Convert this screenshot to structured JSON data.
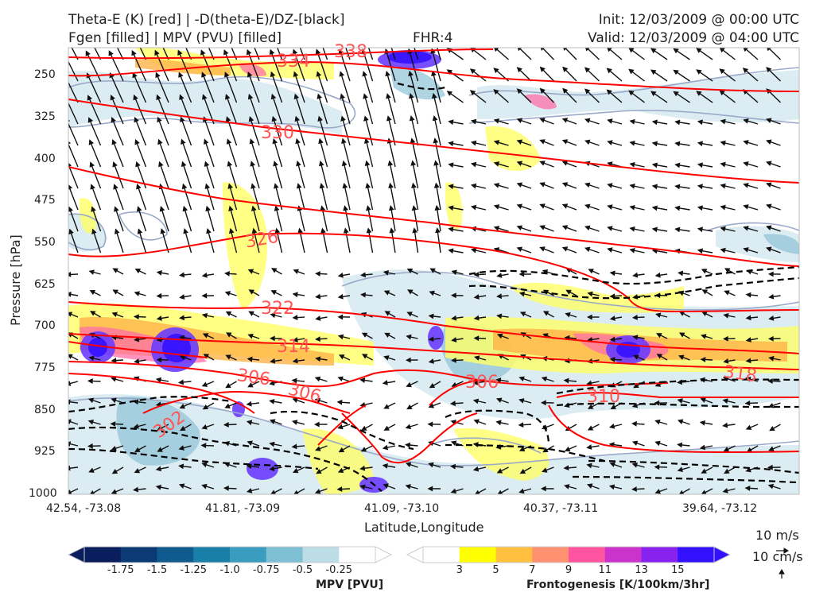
{
  "header": {
    "title_line1": "Theta-E (K) [red] | -D(theta-E)/DZ-[black]",
    "title_line2": "Fgen [filled] | MPV (PVU) [filled]",
    "fhr": "FHR:4",
    "init": "Init: 12/03/2009 @ 00:00 UTC",
    "valid": "Valid: 12/03/2009 @ 04:00 UTC"
  },
  "chart_data": {
    "type": "cross-section contour",
    "xlabel": "Latitude,Longitude",
    "ylabel": "Pressure [hPa]",
    "x_ticks": [
      "42.54, -73.08",
      "41.81, -73.09",
      "41.09, -73.10",
      "40.37, -73.11",
      "39.64, -73.12"
    ],
    "y_ticks": [
      250,
      325,
      400,
      475,
      550,
      625,
      700,
      775,
      850,
      925,
      1000
    ],
    "ylim": [
      1000,
      200
    ],
    "theta_e_labels": [
      "338",
      "334",
      "330",
      "326",
      "322",
      "314",
      "306",
      "306",
      "302",
      "306",
      "310",
      "318"
    ],
    "colors": {
      "theta_e": "#ff0000",
      "mpv_contour": "#9aa9c9",
      "arrows": "#111111"
    }
  },
  "colorbars": {
    "mpv": {
      "title": "MPV [PVU]",
      "ticks": [
        "-1.75",
        "-1.5",
        "-1.25",
        "-1.0",
        "-0.75",
        "-0.5",
        "-0.25"
      ],
      "colors": [
        "#0a1e5e",
        "#0b3a75",
        "#0f5a8e",
        "#1a7fa8",
        "#3a9dc0",
        "#7fbfd4",
        "#bddde6",
        "#ffffff"
      ]
    },
    "fgen": {
      "title": "Frontogenesis [K/100km/3hr]",
      "ticks": [
        "3",
        "5",
        "7",
        "9",
        "11",
        "13",
        "15"
      ],
      "colors": [
        "#ffffff",
        "#ffff00",
        "#ffc040",
        "#ff9070",
        "#ff55a0",
        "#cc33cc",
        "#8822ee",
        "#3311ff"
      ]
    }
  },
  "reference_vector": {
    "horizontal": "10 m/s",
    "vertical": "10 cm/s"
  }
}
